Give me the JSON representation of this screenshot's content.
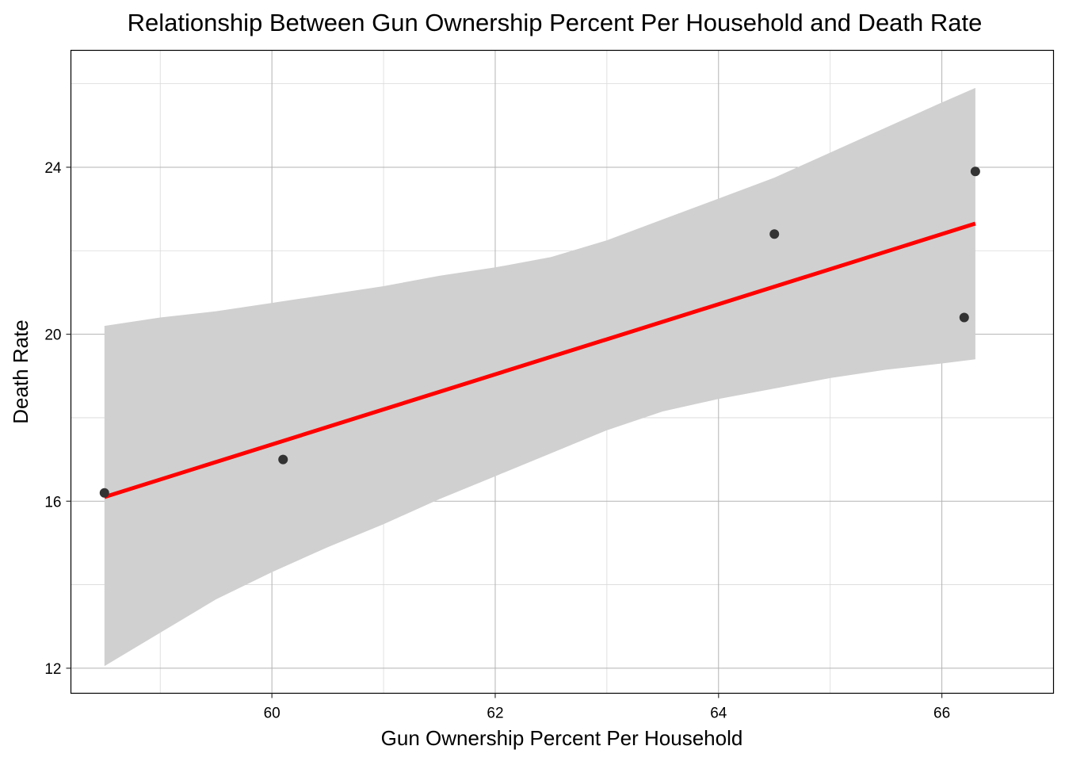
{
  "chart_data": {
    "type": "scatter",
    "title": "Relationship Between Gun Ownership Percent Per Household and Death Rate",
    "xlabel": "Gun Ownership Percent Per Household",
    "ylabel": "Death Rate",
    "xlim": [
      58.2,
      67.0
    ],
    "ylim": [
      11.4,
      26.8
    ],
    "x_ticks": [
      60,
      62,
      64,
      66
    ],
    "y_ticks": [
      12,
      16,
      20,
      24
    ],
    "x_tick_labels": [
      "60",
      "62",
      "64",
      "66"
    ],
    "y_tick_labels": [
      "12",
      "16",
      "20",
      "24"
    ],
    "x_minor_ticks": [
      59,
      61,
      63,
      65
    ],
    "y_minor_ticks": [
      14,
      18,
      22,
      26
    ],
    "grid": true,
    "legend": "none",
    "series": [
      {
        "x": [
          58.5,
          60.1,
          64.5,
          66.2,
          66.3
        ],
        "y": [
          16.2,
          17.0,
          22.4,
          20.4,
          23.9
        ],
        "color": "#333333"
      }
    ],
    "trend_line": {
      "method": "linear",
      "x": [
        58.5,
        66.3
      ],
      "y": [
        16.1,
        22.65
      ],
      "color": "#ff0000"
    },
    "confidence_band": {
      "color": "#d0d0d0",
      "x": [
        58.5,
        59.0,
        59.5,
        60.0,
        60.5,
        61.0,
        61.5,
        62.0,
        62.5,
        63.0,
        63.5,
        64.0,
        64.5,
        65.0,
        65.5,
        66.0,
        66.3
      ],
      "lower": [
        12.05,
        12.85,
        13.65,
        14.3,
        14.9,
        15.45,
        16.05,
        16.6,
        17.15,
        17.7,
        18.15,
        18.45,
        18.7,
        18.95,
        19.15,
        19.3,
        19.4
      ],
      "upper": [
        20.2,
        20.4,
        20.55,
        20.75,
        20.95,
        21.15,
        21.4,
        21.6,
        21.85,
        22.25,
        22.75,
        23.25,
        23.75,
        24.35,
        24.95,
        25.55,
        25.9
      ]
    }
  }
}
